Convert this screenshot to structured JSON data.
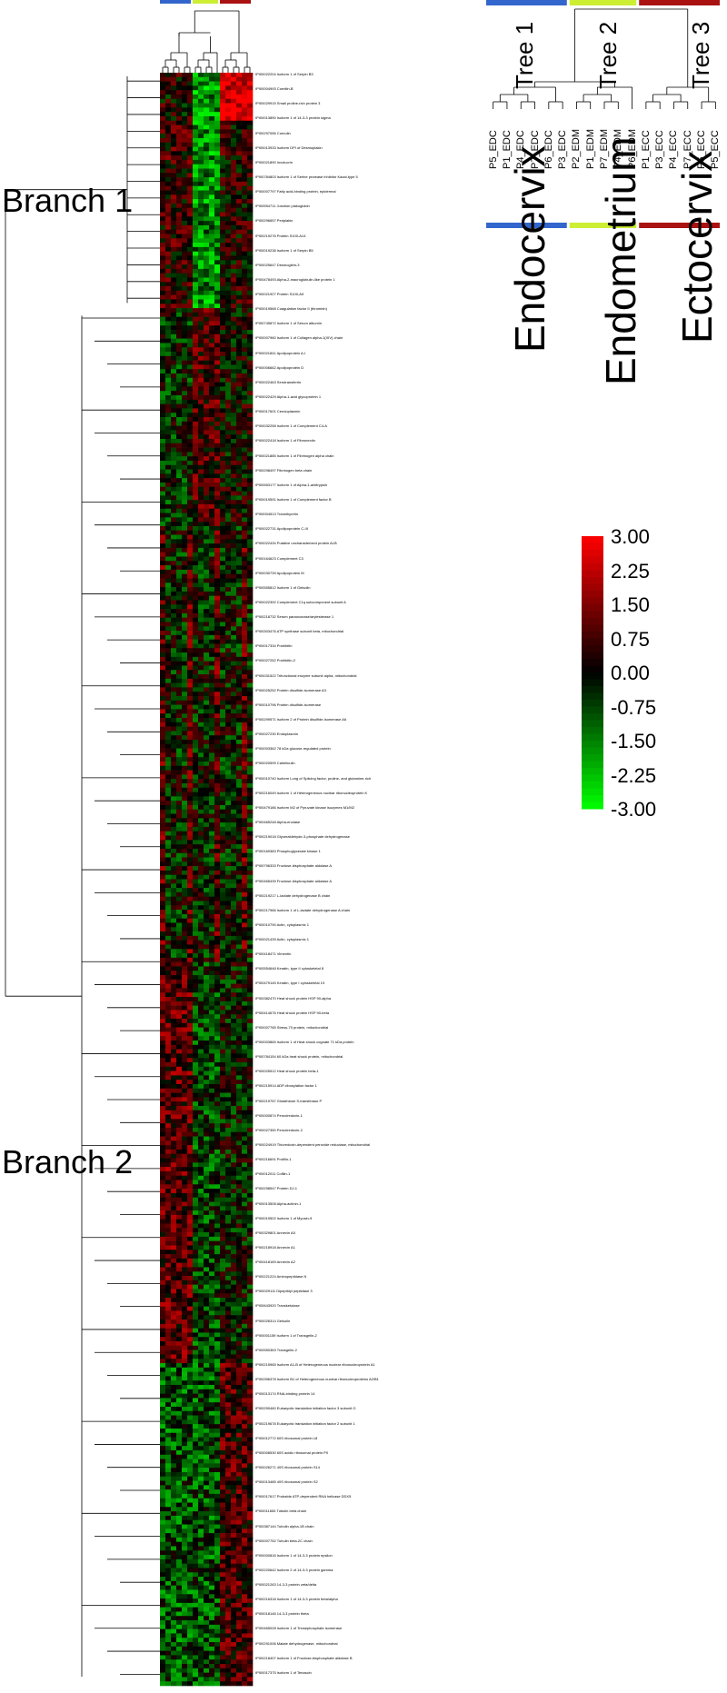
{
  "chart_data": {
    "type": "heatmap",
    "title": "",
    "colorbar": {
      "ticks": [
        "3.00",
        "2.25",
        "1.50",
        "0.75",
        "0.00",
        "-0.75",
        "-1.50",
        "-2.25",
        "-3.00"
      ],
      "range": [
        -3.0,
        3.0
      ],
      "high_color": "#ff0000",
      "mid_color": "#000000",
      "low_color": "#00ff00"
    },
    "column_trees": [
      {
        "name": "Tree 1",
        "tissue": "Endocervix",
        "color": "#3366cc",
        "samples": [
          "P5_EDC",
          "P1_EDC",
          "P4_EDC",
          "P7_EDC",
          "P6_EDC",
          "P3_EDC"
        ]
      },
      {
        "name": "Tree 2",
        "tissue": "Endometrium",
        "color": "#ccee33",
        "samples": [
          "P2_EDM",
          "P1_EDM",
          "P7_EDM",
          "P4_EDM",
          "P6_EDM"
        ]
      },
      {
        "name": "Tree 3",
        "tissue": "Ectocervix",
        "color": "#aa1111",
        "samples": [
          "P1_ECC",
          "P3_ECC",
          "P4_ECC",
          "P7_ECC",
          "P6_ECC",
          "P5_ECC"
        ]
      }
    ],
    "row_branches": [
      "Branch 1",
      "Branch 2"
    ],
    "row_branch_split_fraction": 0.145,
    "rows_total": 370,
    "columns_total": 17,
    "gene_labels_sample": [
      "IPI00022204 Isoform 1 of Serpin B3",
      "IPI00004993 Cornifin-B",
      "IPI00029915 Small proline-rich protein 3",
      "IPI00013890 Isoform 1 of 14-3-3 protein sigma",
      "IPI00297056 Cornulin",
      "IPI00013933 Isoform DPI of Desmoplakin",
      "IPI00021890 Involucrin",
      "IPI00784803 Isoform 1 of Serine protease inhibitor Kazal-type 5",
      "IPI00007797 Fatty acid-binding protein, epidermal",
      "IPI00554711 Junction plakoglobin",
      "IPI00296657 Periplakin",
      "IPI00219276 Protein S100-A14",
      "IPI00019238 Isoform 1 of Serpin B5",
      "IPI00025647 Desmoglein-3",
      "IPI00478493 Alpha-2-macroglobulin-like protein 1",
      "IPI00021927 Protein S100-A9",
      "IPI00019568 Coagulation factor II (thrombin)",
      "IPI00745872 Isoform 1 of Serum albumin",
      "IPI00007960 Isoform 1 of Collagen alpha-1(XIV) chain",
      "IPI00021841 Apolipoprotein A-I",
      "IPI00006662 Apolipoprotein D",
      "IPI00022463 Serotransferrin",
      "IPI00022429 Alpha-1-acid glycoprotein 1",
      "IPI00017601 Ceruloplasmin",
      "IPI00032258 Isoform 1 of Complement C4-A",
      "IPI00022418 Isoform 1 of Fibronectin",
      "IPI00021885 Isoform 1 of Fibrinogen alpha chain",
      "IPI00298497 Fibrinogen beta chain",
      "IPI00553177 Isoform 1 of Alpha-1-antitrypsin",
      "IPI00019591 Isoform 1 of Complement factor B",
      "IPI00004513 Transthyretin",
      "IPI00022731 Apolipoprotein C-III",
      "IPI00022434 Putative uncharacterized protein ALB",
      "IPI00164623 Complement C3",
      "IPI00030739 Apolipoprotein M",
      "IPI00555812 Isoform 1 of Gelsolin",
      "IPI00022392 Complement C1q subcomponent subunit A",
      "IPI00218732 Serum paraoxonase/arylesterase 1",
      "IPI00303476 ATP synthase subunit beta, mitochondrial",
      "IPI00017334 Prohibitin",
      "IPI00027252 Prohibitin-2",
      "IPI00031522 Trifunctional enzyme subunit alpha, mitochondrial",
      "IPI00025252 Protein disulfide-isomerase A3",
      "IPI00010796 Protein disulfide-isomerase",
      "IPI00299571 Isoform 2 of Protein disulfide-isomerase A6",
      "IPI00027230 Endoplasmin",
      "IPI00003362 78 kDa glucose-regulated protein",
      "IPI00020599 Calreticulin",
      "IPI00010740 Isoform Long of Splicing factor, proline- and glutamine-rich",
      "IPI00216049 Isoform 1 of Heterogeneous nuclear ribonucleoprotein K",
      "IPI00479186 Isoform M2 of Pyruvate kinase isozymes M1/M2",
      "IPI00465248 Alpha-enolase",
      "IPI00219018 Glyceraldehyde-3-phosphate dehydrogenase",
      "IPI00169383 Phosphoglycerate kinase 1",
      "IPI00796333 Fructose-bisphosphate aldolase A",
      "IPI00465439 Fructose-bisphosphate aldolase A",
      "IPI00219217 L-lactate dehydrogenase B chain",
      "IPI00217966 Isoform 1 of L-lactate dehydrogenase A chain",
      "IPI00010790 Actin, cytoplasmic 1",
      "IPI00021439 Actin, cytoplasmic 1",
      "IPI00418471 Vimentin",
      "IPI00554648 Keratin, type II cytoskeletal 8",
      "IPI00479145 Keratin, type I cytoskeletal 19",
      "IPI00382470 Heat shock protein HSP 90-alpha",
      "IPI00414676 Heat shock protein HSP 90-beta",
      "IPI00007765 Stress-70 protein, mitochondrial",
      "IPI00003865 Isoform 1 of Heat shock cognate 71 kDa protein",
      "IPI00784154 60 kDa heat shock protein, mitochondrial",
      "IPI00025512 Heat shock protein beta-1",
      "IPI00215914 ADP-ribosylation factor 1",
      "IPI00219757 Glutathione S-transferase P",
      "IPI00000874 Peroxiredoxin-1",
      "IPI00027350 Peroxiredoxin-2",
      "IPI00024919 Thioredoxin-dependent peroxide reductase, mitochondrial",
      "IPI00216691 Profilin-1",
      "IPI00012011 Cofilin-1",
      "IPI00298547 Protein DJ-1",
      "IPI00013508 Alpha-actinin-1",
      "IPI00019502 Isoform 1 of Myosin-9",
      "IPI00329801 Annexin A5",
      "IPI00218918 Annexin A1",
      "IPI00418169 Annexin A2",
      "IPI00221224 Aminopeptidase N",
      "IPI00029111 Dipeptidyl peptidase 3",
      "IPI00643920 Transketolase",
      "IPI00026314 Gelsolin",
      "IPI00001159 Isoform 1 of Transgelin-2",
      "IPI00550363 Transgelin-2",
      "IPI00215965 Isoform A1-B of Heterogeneous nuclear ribonucleoprotein A1",
      "IPI00396378 Isoform B1 of Heterogeneous nuclear ribonucleoproteins A2/B1",
      "IPI00013174 RNA-binding protein 14",
      "IPI00290460 Eukaryotic translation initiation factor 3 subunit G",
      "IPI00219678 Eukaryotic translation initiation factor 2 subunit 1",
      "IPI00012772 60S ribosomal protein L8",
      "IPI00008530 60S acidic ribosomal protein P0",
      "IPI00026271 40S ribosomal protein S14",
      "IPI00013485 40S ribosomal protein S2",
      "IPI00017617 Probable ATP-dependent RNA helicase DDX5",
      "IPI00011654 Tubulin beta chain",
      "IPI00387144 Tubulin alpha-1B chain",
      "IPI00007752 Tubulin beta-2C chain",
      "IPI00000816 Isoform 1 of 14-3-3 protein epsilon",
      "IPI00220642 Isoform 2 of 14-3-3 protein gamma",
      "IPI00021263 14-3-3 protein zeta/delta",
      "IPI00216318 Isoform 1 of 14-3-3 protein beta/alpha",
      "IPI00018146 14-3-3 protein theta",
      "IPI00465028 Isoform 1 of Triosephosphate isomerase",
      "IPI00291006 Malate dehydrogenase, mitochondrial",
      "IPI00218407 Isoform 1 of Fructose-bisphosphate aldolase B",
      "IPI00017375 Isoform 1 of Tenascin"
    ]
  },
  "texts": {
    "tree1": "Tree 1",
    "tree2": "Tree 2",
    "tree3": "Tree 3",
    "endocervix": "Endocervix",
    "endometrium": "Endometrium",
    "ectocervix": "Ectocervix",
    "branch1": "Branch 1",
    "branch2": "Branch 2"
  }
}
